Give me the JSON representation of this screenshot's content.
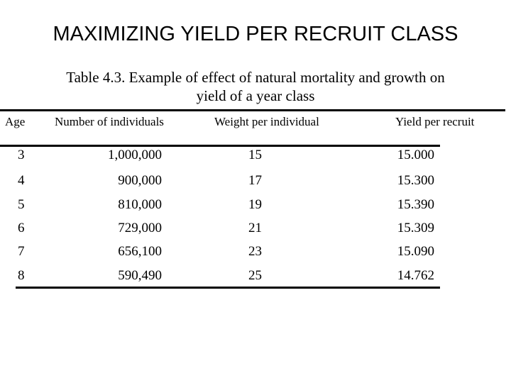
{
  "slide": {
    "title": "MAXIMIZING YIELD PER RECRUIT CLASS"
  },
  "table": {
    "caption_line1": "Table 4.3.  Example of effect of natural mortality and growth on",
    "caption_line2": "yield of a year class",
    "headers": {
      "age": "Age",
      "number": "Number of individuals",
      "weight": "Weight per individual",
      "yield": "Yield per recruit"
    },
    "rows": [
      {
        "age": "3",
        "number": "1,000,000",
        "weight": "15",
        "yield": "15.000"
      },
      {
        "age": "4",
        "number": "900,000",
        "weight": "17",
        "yield": "15.300"
      },
      {
        "age": "5",
        "number": "810,000",
        "weight": "19",
        "yield": "15.390"
      },
      {
        "age": "6",
        "number": "729,000",
        "weight": "21",
        "yield": "15.309"
      },
      {
        "age": "7",
        "number": "656,100",
        "weight": "23",
        "yield": "15.090"
      },
      {
        "age": "8",
        "number": "590,490",
        "weight": "25",
        "yield": "14.762"
      }
    ]
  }
}
